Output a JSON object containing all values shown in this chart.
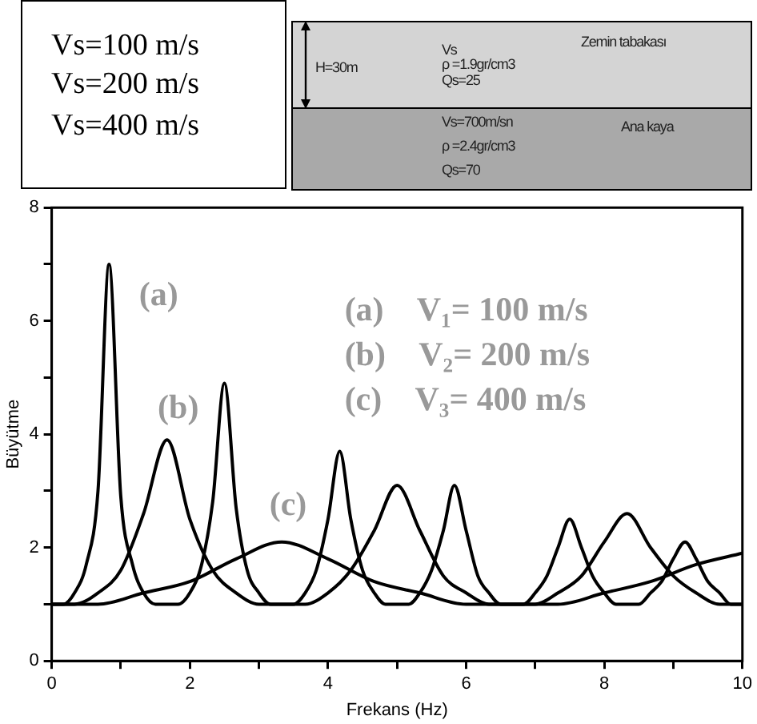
{
  "chart_data": {
    "type": "line",
    "xlabel": "Frekans (Hz)",
    "ylabel": "Büyütme",
    "marker": "none",
    "xlim": [
      0,
      10
    ],
    "xticks": [
      0,
      {
        "value": 1,
        "label": null
      },
      2,
      {
        "value": 3,
        "label": null
      },
      4,
      {
        "value": 5,
        "label": null
      },
      6,
      {
        "value": 7,
        "label": null
      },
      8,
      {
        "value": 9,
        "label": null
      },
      10
    ],
    "ylim": [
      0,
      8
    ],
    "yticks": [
      0,
      {
        "value": 1,
        "label": null
      },
      2,
      {
        "value": 3,
        "label": null
      },
      4,
      {
        "value": 5,
        "label": null
      },
      6,
      {
        "value": 7,
        "label": null
      },
      8
    ],
    "annotations": [
      "(a)    V₁= 100 m/s",
      "(b)    V₂= 200 m/s",
      "(c)    V₃= 400 m/s",
      "Vs=100 m/s",
      "Vs=200 m/s",
      "Vs=400 m/s",
      "H=30m",
      "Vs",
      "ρ =1.9gr/cm3",
      "Qs=25",
      "Zemin tabakası",
      "Vs=700m/sn",
      "ρ =2.4gr/cm3",
      "Qs=70",
      "Ana kaya"
    ],
    "series": [
      {
        "name": "(a)",
        "color": "#000000",
        "x": [
          0,
          0.17,
          0.33,
          0.5,
          0.67,
          0.83,
          1,
          1.17,
          1.33,
          1.5,
          1.67,
          1.83,
          2,
          2.17,
          2.33,
          2.5,
          2.67,
          2.83,
          3,
          3.17,
          3.33,
          3.5,
          3.67,
          3.83,
          4,
          4.17,
          4.33,
          4.5,
          4.67,
          4.83,
          5,
          5.17,
          5.33,
          5.5,
          5.67,
          5.83,
          6,
          6.17,
          6.33,
          6.5,
          6.67,
          6.83,
          7,
          7.17,
          7.33,
          7.5,
          7.67,
          7.83,
          8,
          8.17,
          8.33,
          8.5,
          8.67,
          8.83,
          9,
          9.17,
          9.33,
          9.5,
          9.67,
          9.83,
          10
        ],
        "values": [
          1,
          1,
          1.2,
          1.7,
          3,
          7,
          2.9,
          1.7,
          1.2,
          1,
          1,
          1,
          1.2,
          1.7,
          2.8,
          4.9,
          2.7,
          1.6,
          1.2,
          1,
          1,
          1,
          1.2,
          1.6,
          2.5,
          3.7,
          2.5,
          1.6,
          1.2,
          1,
          1,
          1,
          1.2,
          1.6,
          2.3,
          3.1,
          2.3,
          1.5,
          1.2,
          1,
          1,
          1,
          1.2,
          1.5,
          2,
          2.5,
          2,
          1.5,
          1.2,
          1,
          1,
          1,
          1.2,
          1.4,
          1.8,
          2.1,
          1.8,
          1.4,
          1.2,
          1,
          1
        ]
      },
      {
        "name": "(b)",
        "color": "#000000",
        "x": [
          0,
          0.33,
          0.67,
          1,
          1.33,
          1.67,
          2,
          2.33,
          2.67,
          3,
          3.33,
          3.67,
          4,
          4.33,
          4.67,
          5,
          5.33,
          5.67,
          6,
          6.33,
          6.67,
          7,
          7.33,
          7.67,
          8,
          8.33,
          8.67,
          9,
          9.33,
          9.67,
          10
        ],
        "values": [
          1,
          1,
          1.2,
          1.6,
          2.6,
          3.9,
          2.5,
          1.6,
          1.2,
          1,
          1,
          1,
          1.2,
          1.6,
          2.3,
          3.1,
          2.3,
          1.5,
          1.2,
          1,
          1,
          1,
          1.2,
          1.5,
          2.1,
          2.6,
          2,
          1.5,
          1.2,
          1,
          1
        ]
      },
      {
        "name": "(c)",
        "color": "#000000",
        "x": [
          0,
          0.67,
          1.33,
          2,
          2.67,
          3.33,
          4,
          4.67,
          5.33,
          6,
          6.67,
          7.33,
          8,
          8.67,
          9.33,
          10
        ],
        "values": [
          1,
          1,
          1.2,
          1.4,
          1.8,
          2.1,
          1.8,
          1.4,
          1.2,
          1,
          1,
          1,
          1.2,
          1.4,
          1.7,
          1.9
        ]
      }
    ]
  }
}
